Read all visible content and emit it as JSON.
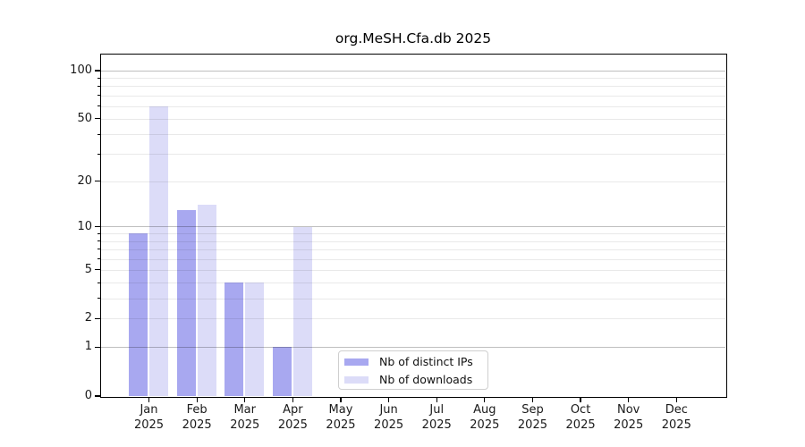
{
  "title": "org.MeSH.Cfa.db 2025",
  "chart_data": {
    "type": "bar",
    "title": "org.MeSH.Cfa.db 2025",
    "year": "2025",
    "categories": [
      "Jan",
      "Feb",
      "Mar",
      "Apr",
      "May",
      "Jun",
      "Jul",
      "Aug",
      "Sep",
      "Oct",
      "Nov",
      "Dec"
    ],
    "series": [
      {
        "name": "Nb of distinct IPs",
        "color": "#a8a8f0",
        "values": [
          9,
          13,
          4,
          1,
          0,
          0,
          0,
          0,
          0,
          0,
          0,
          0
        ]
      },
      {
        "name": "Nb of downloads",
        "color": "#dcdcf8",
        "values": [
          60,
          14,
          4,
          10,
          0,
          0,
          0,
          0,
          0,
          0,
          0,
          0
        ]
      }
    ],
    "yscale": "log10(1+x)",
    "ylim": [
      0,
      125
    ],
    "yticks": [
      0,
      1,
      2,
      5,
      10,
      20,
      50,
      100
    ],
    "yticks_minor": [
      2,
      3,
      4,
      5,
      6,
      7,
      8,
      9,
      20,
      30,
      40,
      50,
      60,
      70,
      80,
      90
    ],
    "grid": true,
    "legend_position": "lower center-left inside plot"
  },
  "legend": {
    "items": [
      {
        "label": "Nb of distinct IPs",
        "color": "#a8a8f0"
      },
      {
        "label": "Nb of downloads",
        "color": "#dcdcf8"
      }
    ]
  },
  "colors": {
    "bar_distinct_ips": "#a8a8f0",
    "bar_downloads": "#dcdcf8",
    "grid_major": "rgba(0,0,0,0.25)",
    "grid_minor": "rgba(0,0,0,0.085)",
    "spine": "#000000",
    "background": "#ffffff"
  }
}
